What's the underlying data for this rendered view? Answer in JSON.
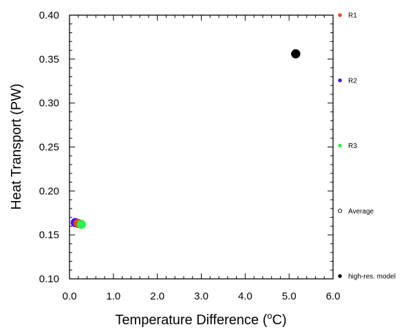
{
  "chart_data": {
    "type": "scatter",
    "title": "",
    "xlabel_prefix": "Temperature Difference (",
    "xlabel_sup": "o",
    "xlabel_suffix": "C)",
    "ylabel": "Heat Transport (PW)",
    "xlim": [
      0,
      6
    ],
    "ylim": [
      0.1,
      0.4
    ],
    "x_ticks": [
      "0.0",
      "1.0",
      "2.0",
      "3.0",
      "4.0",
      "5.0",
      "6.0"
    ],
    "y_ticks": [
      "0.10",
      "0.15",
      "0.20",
      "0.25",
      "0.30",
      "0.35",
      "0.40"
    ],
    "grid": false,
    "legend_position": "right",
    "series": [
      {
        "name": "R1",
        "color": "#f0451e",
        "marker": "filled-circle",
        "points": [
          {
            "x": 0.2,
            "y": 0.163
          }
        ]
      },
      {
        "name": "R2",
        "color": "#4a14ec",
        "marker": "filled-circle",
        "points": [
          {
            "x": 0.13,
            "y": 0.164
          }
        ]
      },
      {
        "name": "R3",
        "color": "#2bef4d",
        "marker": "filled-circle",
        "points": [
          {
            "x": 0.27,
            "y": 0.162
          }
        ]
      },
      {
        "name": "Average",
        "color": "#000000",
        "marker": "hollow-circle",
        "points": []
      },
      {
        "name": "high-res. model",
        "color": "#000000",
        "marker": "filled-circle",
        "points": [
          {
            "x": 5.15,
            "y": 0.356
          }
        ]
      }
    ]
  }
}
